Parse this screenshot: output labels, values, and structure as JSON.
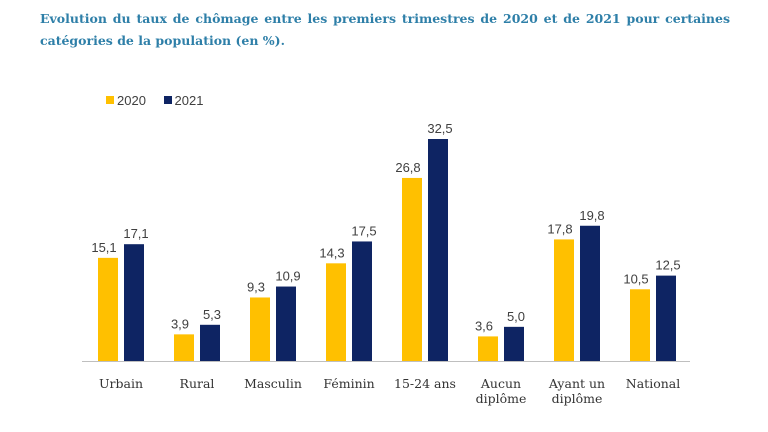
{
  "title": "Evolution du taux de chômage entre les premiers trimestres de 2020 et de 2021 pour certaines catégories de la population (en %).",
  "chart_data": {
    "type": "bar",
    "title": "Evolution du taux de chômage entre les premiers trimestres de 2020 et de 2021 pour certaines catégories de la population (en %).",
    "xlabel": "",
    "ylabel": "",
    "ylim": [
      0,
      32.5
    ],
    "grid": false,
    "legend_position": "top-left",
    "categories": [
      [
        "Urbain"
      ],
      [
        "Rural"
      ],
      [
        "Masculin"
      ],
      [
        "Féminin"
      ],
      [
        "15-24 ans"
      ],
      [
        "Aucun",
        "diplôme"
      ],
      [
        "Ayant un",
        "diplôme"
      ],
      [
        "National"
      ]
    ],
    "series": [
      {
        "name": "2020",
        "color": "#ffc000",
        "values": [
          15.1,
          3.9,
          9.3,
          14.3,
          26.8,
          3.6,
          17.8,
          10.5
        ],
        "labels": [
          "15,1",
          "3,9",
          "9,3",
          "14,3",
          "26,8",
          "3,6",
          "17,8",
          "10,5"
        ]
      },
      {
        "name": "2021",
        "color": "#0e2463",
        "values": [
          17.1,
          5.3,
          10.9,
          17.5,
          32.5,
          5.0,
          19.8,
          12.5
        ],
        "labels": [
          "17,1",
          "5,3",
          "10,9",
          "17,5",
          "32,5",
          "5,0",
          "19,8",
          "12,5"
        ]
      }
    ]
  }
}
